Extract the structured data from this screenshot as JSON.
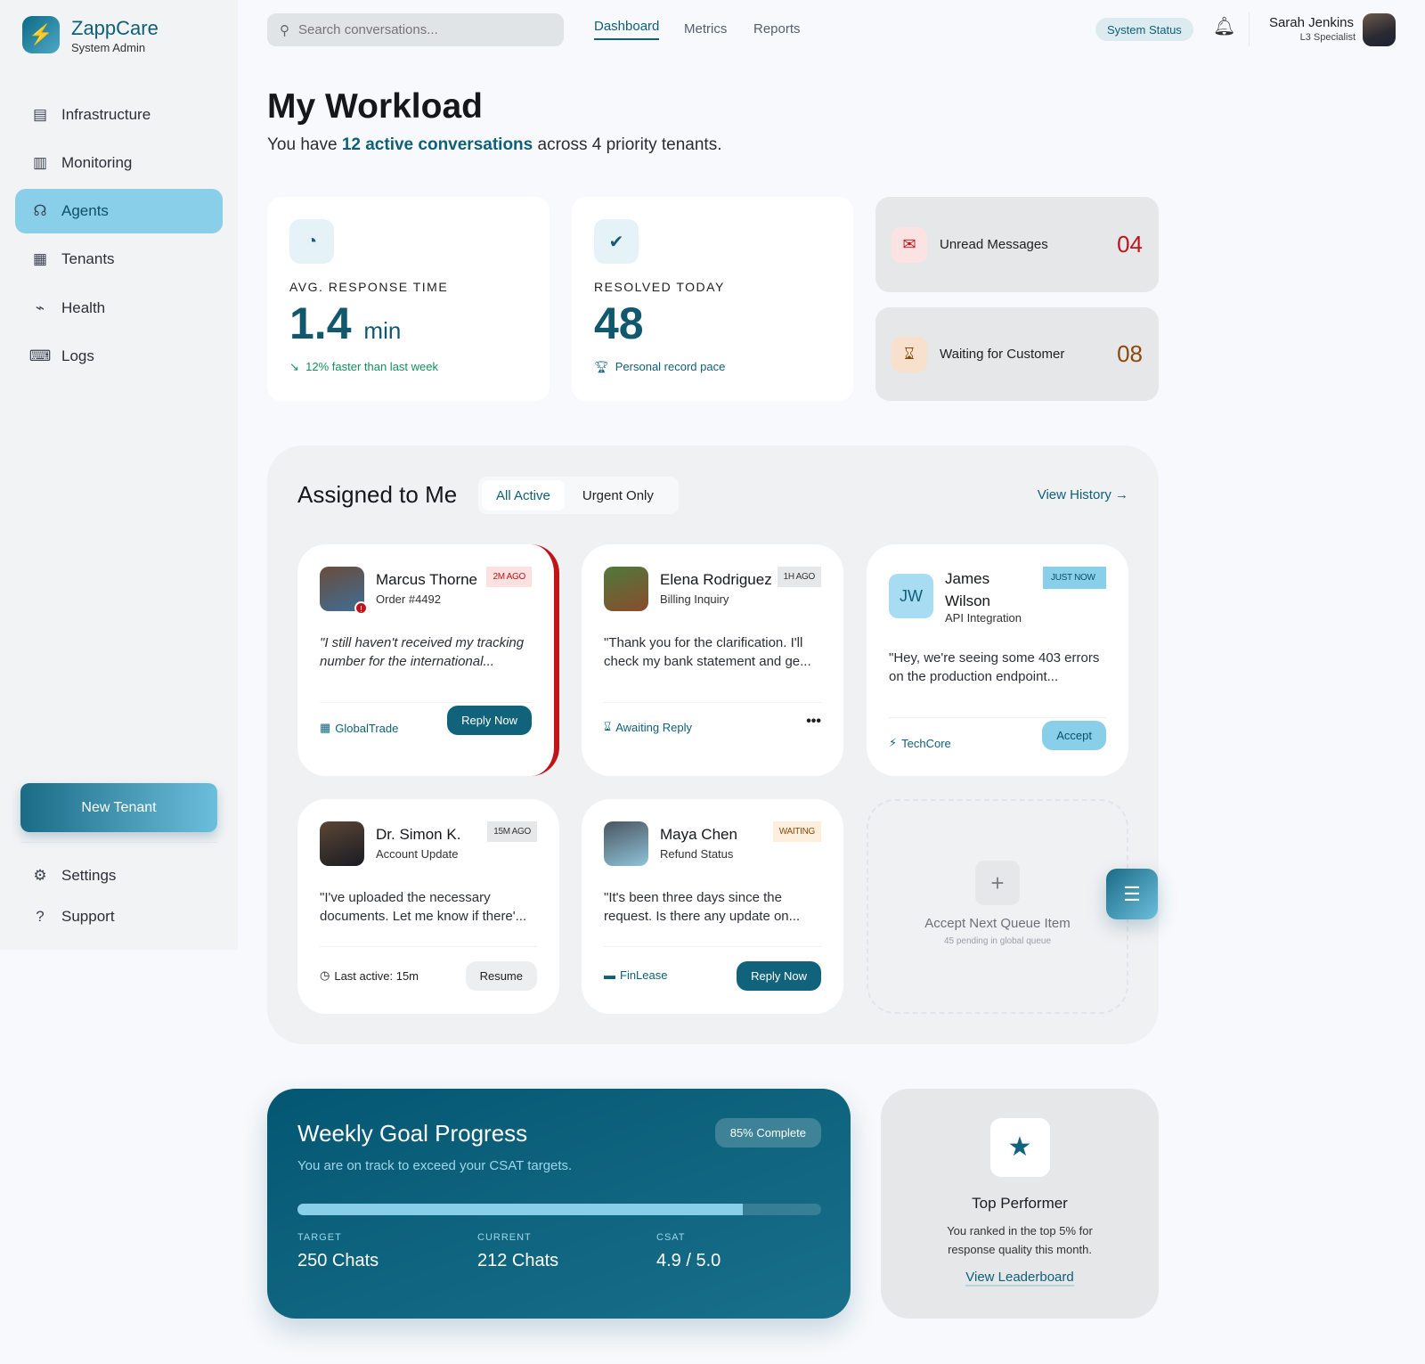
{
  "app": {
    "name": "ZappCare",
    "role": "System Admin"
  },
  "sidebar": {
    "items": [
      {
        "label": "Infrastructure",
        "icon": "server-icon"
      },
      {
        "label": "Monitoring",
        "icon": "chart-icon"
      },
      {
        "label": "Agents",
        "icon": "headset-icon",
        "active": true
      },
      {
        "label": "Tenants",
        "icon": "building-icon"
      },
      {
        "label": "Health",
        "icon": "pulse-icon"
      },
      {
        "label": "Logs",
        "icon": "terminal-icon"
      }
    ],
    "new_tenant": "New Tenant",
    "settings": "Settings",
    "support": "Support"
  },
  "header": {
    "search_placeholder": "Search conversations...",
    "tabs": [
      "Dashboard",
      "Metrics",
      "Reports"
    ],
    "active_tab": "Dashboard",
    "system_status": "System Status",
    "user": {
      "name": "Sarah Jenkins",
      "title": "L3 Specialist"
    }
  },
  "page": {
    "title": "My Workload",
    "subtitle_pre": "You have ",
    "subtitle_highlight": "12 active conversations",
    "subtitle_post": " across 4 priority tenants."
  },
  "stats": [
    {
      "label": "AVG. RESPONSE TIME",
      "value": "1.4",
      "unit": "min",
      "note": "12% faster than last week",
      "note_color": "#12915a"
    },
    {
      "label": "RESOLVED TODAY",
      "value": "48",
      "note": "Personal record pace",
      "note_color": "#0e5f78"
    }
  ],
  "mini_stats": [
    {
      "label": "Unread Messages",
      "value": "04",
      "color": "#c0141a"
    },
    {
      "label": "Waiting for Customer",
      "value": "08",
      "color": "#8a4a0a"
    }
  ],
  "assigned": {
    "title": "Assigned to Me",
    "filters": [
      "All Active",
      "Urgent Only"
    ],
    "active_filter": "All Active",
    "view_history": "View History",
    "conversations": [
      {
        "name": "Marcus Thorne",
        "topic": "Order #4492",
        "badge": "2M AGO",
        "message": "\"I still haven't received my tracking number for the international...",
        "tenant": "GlobalTrade",
        "action": "Reply Now",
        "urgent": true
      },
      {
        "name": "Elena Rodriguez",
        "topic": "Billing Inquiry",
        "badge": "1H AGO",
        "message": "\"Thank you for the clarification. I'll check my bank statement and ge...",
        "status": "Awaiting Reply"
      },
      {
        "name": "James Wilson",
        "initials": "JW",
        "topic": "API Integration",
        "badge": "JUST NOW",
        "message": "\"Hey, we're seeing some 403 errors on the production endpoint...",
        "tenant": "TechCore",
        "action": "Accept"
      },
      {
        "name": "Dr. Simon K.",
        "topic": "Account Update",
        "badge": "15M AGO",
        "message": "\"I've uploaded the necessary documents. Let me know if there'...",
        "status": "Last active: 15m",
        "action": "Resume"
      },
      {
        "name": "Maya Chen",
        "topic": "Refund Status",
        "badge": "WAITING",
        "message": "\"It's been three days since the request. Is there any update on...",
        "tenant": "FinLease",
        "action": "Reply Now"
      }
    ],
    "queue": {
      "title": "Accept Next Queue Item",
      "sub": "45 pending in global queue"
    }
  },
  "goal": {
    "title": "Weekly Goal Progress",
    "subtitle": "You are on track to exceed your CSAT targets.",
    "badge": "85% Complete",
    "progress": 0.85,
    "metrics": [
      {
        "label": "TARGET",
        "value": "250 Chats"
      },
      {
        "label": "CURRENT",
        "value": "212 Chats"
      },
      {
        "label": "CSAT",
        "value": "4.9 / 5.0"
      }
    ]
  },
  "performer": {
    "title": "Top Performer",
    "text": "You ranked in the top 5% for response quality this month.",
    "link": "View Leaderboard"
  }
}
